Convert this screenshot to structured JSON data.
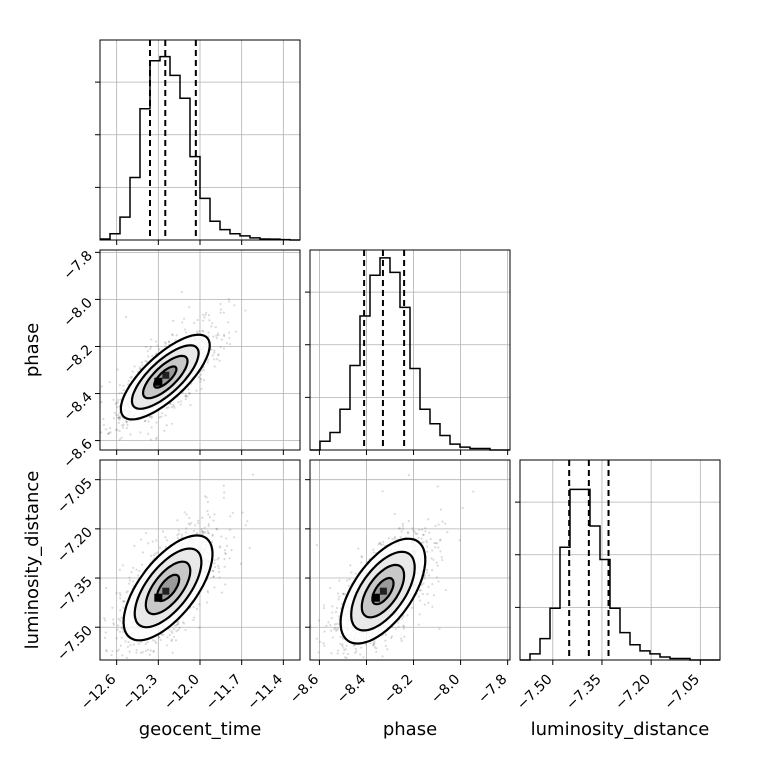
{
  "chart_data": {
    "type": "corner",
    "parameters": [
      "geocent_time",
      "phase",
      "luminosity_distance"
    ],
    "axes": {
      "geocent_time": {
        "label": "geocent_time",
        "range": [
          -12.72,
          -11.28
        ],
        "ticks": [
          -12.6,
          -12.3,
          -12.0,
          -11.7,
          -11.4
        ],
        "tick_labels": [
          "−12.6",
          "−12.3",
          "−12.0",
          "−11.7",
          "−11.4"
        ]
      },
      "phase": {
        "label": "phase",
        "range": [
          -8.64,
          -7.79
        ],
        "ticks": [
          -8.6,
          -8.4,
          -8.2,
          -8.0,
          -7.8
        ],
        "tick_labels": [
          "−8.6",
          "−8.4",
          "−8.2",
          "−8.0",
          "−7.8"
        ]
      },
      "luminosity_distance": {
        "label": "luminosity_distance",
        "range": [
          -7.6,
          -6.99
        ],
        "ticks": [
          -7.5,
          -7.35,
          -7.2,
          -7.05
        ],
        "tick_labels": [
          "−7.50",
          "−7.35",
          "−7.20",
          "−7.05"
        ]
      }
    },
    "histograms": [
      {
        "parameter": "geocent_time",
        "bin_edges": [
          -12.72,
          -12.648,
          -12.576,
          -12.504,
          -12.432,
          -12.36,
          -12.288,
          -12.216,
          -12.144,
          -12.072,
          -12.0,
          -11.928,
          -11.856,
          -11.784,
          -11.712,
          -11.64,
          -11.568,
          -11.496,
          -11.424,
          -11.352,
          -11.28
        ],
        "counts": [
          0.5,
          3,
          11,
          30,
          63,
          86,
          88,
          79,
          68,
          40,
          20,
          9,
          5,
          3,
          2,
          1,
          0.5,
          0.4,
          0.2,
          0
        ],
        "ymax": 95,
        "quantiles": [
          -12.36,
          -12.25,
          -12.03
        ]
      },
      {
        "parameter": "phase",
        "bin_edges": [
          -8.64,
          -8.5975,
          -8.555,
          -8.5125,
          -8.47,
          -8.4275,
          -8.385,
          -8.3425,
          -8.3,
          -8.2575,
          -8.215,
          -8.1725,
          -8.13,
          -8.0875,
          -8.045,
          -8.0025,
          -7.96,
          -7.9175,
          -7.875,
          -7.8325,
          -7.79
        ],
        "counts": [
          0,
          3,
          6,
          14,
          29,
          46,
          60,
          66,
          61,
          49,
          28,
          14,
          9,
          5,
          2,
          1,
          0.5,
          0.5,
          0,
          0
        ],
        "ymax": 68,
        "quantiles": [
          -8.41,
          -8.33,
          -8.24
        ]
      },
      {
        "parameter": "luminosity_distance",
        "bin_edges": [
          -7.6,
          -7.5695,
          -7.539,
          -7.5085,
          -7.478,
          -7.4475,
          -7.417,
          -7.3865,
          -7.356,
          -7.3255,
          -7.295,
          -7.2645,
          -7.234,
          -7.2035,
          -7.173,
          -7.1425,
          -7.112,
          -7.0815,
          -7.051,
          -7.0205,
          -6.99
        ],
        "counts": [
          0,
          2,
          7,
          17,
          37,
          56,
          56,
          44,
          33,
          17,
          9,
          5,
          3,
          2,
          1,
          0.5,
          0.5,
          0,
          0,
          0
        ],
        "ymax": 65,
        "quantiles": [
          -7.45,
          -7.39,
          -7.33
        ]
      }
    ],
    "pairs": [
      {
        "x": "geocent_time",
        "y": "phase",
        "mean": [
          -12.25,
          -8.33
        ],
        "sd": [
          0.16,
          0.09
        ],
        "corr": 0.75,
        "contour_levels_sigma": [
          0.5,
          1.0,
          1.5,
          2.0
        ],
        "peak": [
          -12.3,
          -8.35
        ]
      },
      {
        "x": "geocent_time",
        "y": "luminosity_distance",
        "mean": [
          -12.23,
          -7.38
        ],
        "sd": [
          0.16,
          0.08
        ],
        "corr": 0.65,
        "contour_levels_sigma": [
          0.5,
          1.0,
          1.5,
          2.0
        ],
        "peak": [
          -12.3,
          -7.41
        ]
      },
      {
        "x": "phase",
        "y": "luminosity_distance",
        "mean": [
          -8.33,
          -7.39
        ],
        "sd": [
          0.09,
          0.08
        ],
        "corr": 0.6,
        "contour_levels_sigma": [
          0.5,
          1.0,
          1.5,
          2.0
        ],
        "peak": [
          -8.36,
          -7.41
        ]
      }
    ],
    "grid": true,
    "quantile_line_style": "dashed"
  }
}
